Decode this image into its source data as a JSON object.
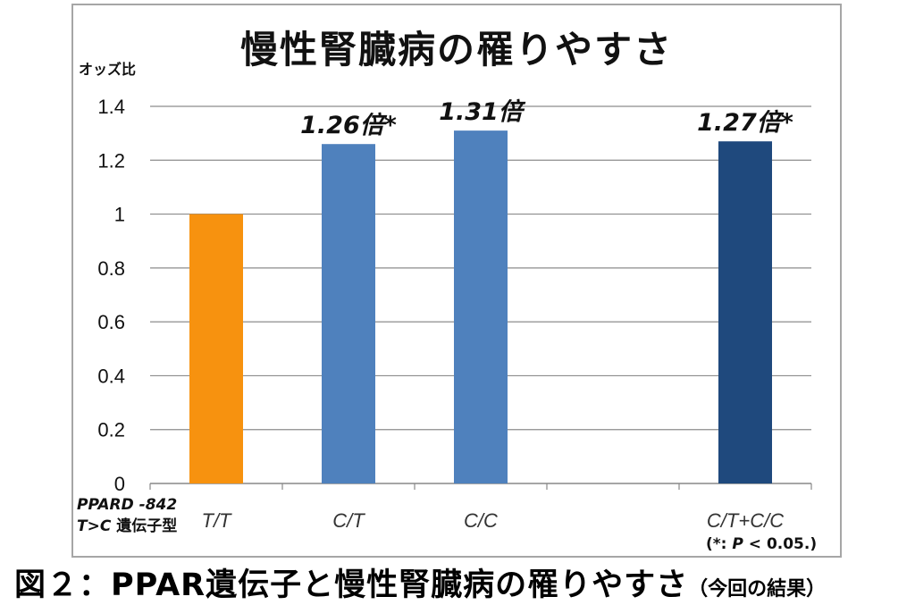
{
  "chart_data": {
    "type": "bar",
    "title": "慢性腎臓病の罹りやすさ",
    "ylabel": "オッズ比",
    "ylim": [
      0,
      1.4
    ],
    "yticks": [
      "0",
      "0.2",
      "0.4",
      "0.6",
      "0.8",
      "1",
      "1.2",
      "1.4"
    ],
    "categories": [
      "T/T",
      "C/T",
      "C/C",
      "",
      "C/T+C/C"
    ],
    "values": [
      1.0,
      1.26,
      1.31,
      null,
      1.27
    ],
    "bar_colors": [
      "#f7920f",
      "#4f81bd",
      "#4f81bd",
      null,
      "#1f497d"
    ],
    "data_labels": [
      "",
      "1.26倍*",
      "1.31倍",
      "",
      "1.27倍*"
    ],
    "grid": true,
    "gene_label_line1": "PPARD -842",
    "gene_label_line2_italic": "T>C",
    "gene_label_line2_text": "遺伝子型",
    "note_prefix": "(*: ",
    "note_p": "P",
    "note_suffix": " < 0.05.)"
  },
  "caption": {
    "main": "図２：PPAR遺伝子と慢性腎臓病の罹りやすさ",
    "sub": "（今回の結果）"
  }
}
